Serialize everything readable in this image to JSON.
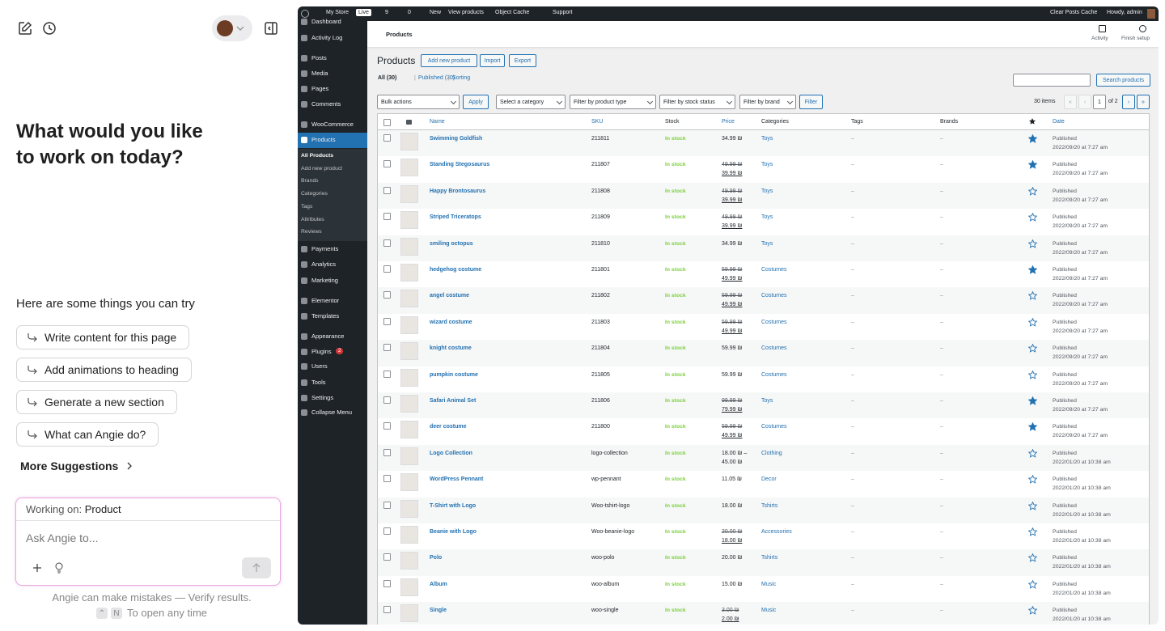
{
  "assistant": {
    "title": "What would you like to work on today?",
    "try_label": "Here are some things you can try",
    "suggestions": [
      "Write content for this page",
      "Add animations to heading",
      "Generate a new section",
      "What can Angie do?"
    ],
    "more": "More Suggestions",
    "working_label": "Working on:",
    "working_value": "Product",
    "placeholder": "Ask Angie to...",
    "disclaimer": "Angie can make mistakes — Verify results.",
    "shortcut_keys": [
      "⌃",
      "N"
    ],
    "shortcut_text": "To open any time"
  },
  "wp": {
    "admin_bar": {
      "left": [
        "My Store",
        "Live",
        "9",
        "0",
        "New",
        "View products",
        "Object Cache",
        "Support"
      ],
      "right": [
        "Clear Posts Cache",
        "Howdy, admin"
      ]
    },
    "menu": [
      "Dashboard",
      "Activity Log",
      "Posts",
      "Media",
      "Pages",
      "Comments",
      "WooCommerce",
      "Products"
    ],
    "submenu": [
      "All Products",
      "Add new product",
      "Brands",
      "Categories",
      "Tags",
      "Attributes",
      "Reviews"
    ],
    "menu2": [
      "Payments",
      "Analytics",
      "Marketing",
      "Elementor",
      "Templates",
      "Appearance",
      "Plugins",
      "Users",
      "Tools",
      "Settings",
      "Collapse Menu"
    ],
    "plugins_badge": "2",
    "header": {
      "title": "Products",
      "actions": [
        "Activity",
        "Finish setup"
      ]
    },
    "page_title": "Products",
    "page_buttons": [
      "Add new product",
      "Import",
      "Export"
    ],
    "views": [
      "All (30)",
      "Published (30)",
      "Sorting"
    ],
    "view_sep": "|",
    "search_button": "Search products",
    "filters": [
      "Bulk actions",
      "Apply",
      "Select a category",
      "Filter by product type",
      "Filter by stock status",
      "Filter by brand",
      "Filter"
    ],
    "pagination": {
      "count": "30 items",
      "first": "«",
      "prev": "‹",
      "page": "1",
      "of": "of 2",
      "next": "›",
      "last": "»"
    },
    "columns": [
      "Name",
      "SKU",
      "Stock",
      "Price",
      "Categories",
      "Tags",
      "Brands",
      "Date"
    ],
    "rows": [
      {
        "name": "Swimming Goldfish",
        "sku": "211811",
        "stock": "In stock",
        "price": [
          "34.99 ₪"
        ],
        "on_sale": false,
        "category": "Toys",
        "tags": "–",
        "brands": "–",
        "featured": true,
        "status": "Published",
        "date": "2022/09/20 at 7:27 am"
      },
      {
        "name": "Standing Stegosaurus",
        "sku": "211807",
        "stock": "In stock",
        "price": [
          "49.99 ₪",
          "39.99 ₪"
        ],
        "on_sale": true,
        "category": "Toys",
        "tags": "–",
        "brands": "–",
        "featured": true,
        "status": "Published",
        "date": "2022/09/20 at 7:27 am"
      },
      {
        "name": "Happy Brontosaurus",
        "sku": "211808",
        "stock": "In stock",
        "price": [
          "49.99 ₪",
          "39.99 ₪"
        ],
        "on_sale": true,
        "category": "Toys",
        "tags": "–",
        "brands": "–",
        "featured": false,
        "status": "Published",
        "date": "2022/09/20 at 7:27 am"
      },
      {
        "name": "Striped Triceratops",
        "sku": "211809",
        "stock": "In stock",
        "price": [
          "49.99 ₪",
          "39.99 ₪"
        ],
        "on_sale": true,
        "category": "Toys",
        "tags": "–",
        "brands": "–",
        "featured": false,
        "status": "Published",
        "date": "2022/09/20 at 7:27 am"
      },
      {
        "name": "smiling octopus",
        "sku": "211810",
        "stock": "In stock",
        "price": [
          "34.99 ₪"
        ],
        "on_sale": false,
        "category": "Toys",
        "tags": "–",
        "brands": "–",
        "featured": false,
        "status": "Published",
        "date": "2022/09/20 at 7:27 am"
      },
      {
        "name": "hedgehog costume",
        "sku": "211801",
        "stock": "In stock",
        "price": [
          "59.99 ₪",
          "49.99 ₪"
        ],
        "on_sale": true,
        "category": "Costumes",
        "tags": "–",
        "brands": "–",
        "featured": true,
        "status": "Published",
        "date": "2022/09/20 at 7:27 am"
      },
      {
        "name": "angel costume",
        "sku": "211802",
        "stock": "In stock",
        "price": [
          "59.99 ₪",
          "49.99 ₪"
        ],
        "on_sale": true,
        "category": "Costumes",
        "tags": "–",
        "brands": "–",
        "featured": false,
        "status": "Published",
        "date": "2022/09/20 at 7:27 am"
      },
      {
        "name": "wizard costume",
        "sku": "211803",
        "stock": "In stock",
        "price": [
          "59.99 ₪",
          "49.99 ₪"
        ],
        "on_sale": true,
        "category": "Costumes",
        "tags": "–",
        "brands": "–",
        "featured": false,
        "status": "Published",
        "date": "2022/09/20 at 7:27 am"
      },
      {
        "name": "knight costume",
        "sku": "211804",
        "stock": "In stock",
        "price": [
          "59.99 ₪"
        ],
        "on_sale": false,
        "category": "Costumes",
        "tags": "–",
        "brands": "–",
        "featured": false,
        "status": "Published",
        "date": "2022/09/20 at 7:27 am"
      },
      {
        "name": "pumpkin costume",
        "sku": "211805",
        "stock": "In stock",
        "price": [
          "59.99 ₪"
        ],
        "on_sale": false,
        "category": "Costumes",
        "tags": "–",
        "brands": "–",
        "featured": false,
        "status": "Published",
        "date": "2022/09/20 at 7:27 am"
      },
      {
        "name": "Safari Animal Set",
        "sku": "211806",
        "stock": "In stock",
        "price": [
          "99.99 ₪",
          "79.99 ₪"
        ],
        "on_sale": true,
        "category": "Toys",
        "tags": "–",
        "brands": "–",
        "featured": true,
        "status": "Published",
        "date": "2022/09/20 at 7:27 am"
      },
      {
        "name": "deer costume",
        "sku": "211800",
        "stock": "In stock",
        "price": [
          "59.99 ₪",
          "49.99 ₪"
        ],
        "on_sale": true,
        "category": "Costumes",
        "tags": "–",
        "brands": "–",
        "featured": true,
        "status": "Published",
        "date": "2022/09/20 at 7:27 am"
      },
      {
        "name": "Logo Collection",
        "sku": "logo-collection",
        "stock": "In stock",
        "price": [
          "18.00 ₪ –",
          "45.00 ₪"
        ],
        "on_sale": false,
        "category": "Clothing",
        "tags": "–",
        "brands": "–",
        "featured": false,
        "status": "Published",
        "date": "2022/01/20 at 10:38 am"
      },
      {
        "name": "WordPress Pennant",
        "sku": "wp-pennant",
        "stock": "In stock",
        "price": [
          "11.05 ₪"
        ],
        "on_sale": false,
        "category": "Decor",
        "tags": "–",
        "brands": "–",
        "featured": false,
        "status": "Published",
        "date": "2022/01/20 at 10:38 am"
      },
      {
        "name": "T-Shirt with Logo",
        "sku": "Woo-tshirt-logo",
        "stock": "In stock",
        "price": [
          "18.00 ₪"
        ],
        "on_sale": false,
        "category": "Tshirts",
        "tags": "–",
        "brands": "–",
        "featured": false,
        "status": "Published",
        "date": "2022/01/20 at 10:38 am"
      },
      {
        "name": "Beanie with Logo",
        "sku": "Woo-beanie-logo",
        "stock": "In stock",
        "price": [
          "20.00 ₪",
          "18.00 ₪"
        ],
        "on_sale": true,
        "category": "Accessories",
        "tags": "–",
        "brands": "–",
        "featured": false,
        "status": "Published",
        "date": "2022/01/20 at 10:38 am"
      },
      {
        "name": "Polo",
        "sku": "woo-polo",
        "stock": "In stock",
        "price": [
          "20.00 ₪"
        ],
        "on_sale": false,
        "category": "Tshirts",
        "tags": "–",
        "brands": "–",
        "featured": false,
        "status": "Published",
        "date": "2022/01/20 at 10:38 am"
      },
      {
        "name": "Album",
        "sku": "woo-album",
        "stock": "In stock",
        "price": [
          "15.00 ₪"
        ],
        "on_sale": false,
        "category": "Music",
        "tags": "–",
        "brands": "–",
        "featured": false,
        "status": "Published",
        "date": "2022/01/20 at 10:38 am"
      },
      {
        "name": "Single",
        "sku": "woo-single",
        "stock": "In stock",
        "price": [
          "3.00 ₪",
          "2.00 ₪"
        ],
        "on_sale": true,
        "category": "Music",
        "tags": "–",
        "brands": "–",
        "featured": false,
        "status": "Published",
        "date": "2022/01/20 at 10:38 am"
      }
    ]
  }
}
